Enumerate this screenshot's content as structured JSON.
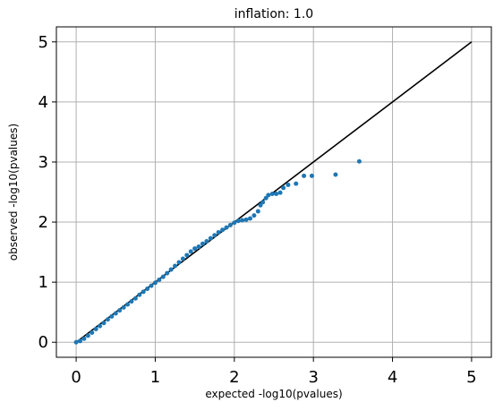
{
  "chart_data": {
    "type": "scatter",
    "title": "inflation: 1.0",
    "xlabel": "expected -log10(pvalues)",
    "ylabel": "observed -log10(pvalues)",
    "xlim": [
      -0.25,
      5.25
    ],
    "ylim": [
      -0.25,
      5.25
    ],
    "xticks": [
      "0",
      "1",
      "2",
      "3",
      "4",
      "5"
    ],
    "yticks": [
      "0",
      "1",
      "2",
      "3",
      "4",
      "5"
    ],
    "grid": true,
    "colors": {
      "points": "#1f77b4",
      "reference_line": "#000000",
      "grid": "#b0b0b0"
    },
    "reference_line": {
      "x": [
        0,
        5
      ],
      "y": [
        0,
        5
      ]
    },
    "series": [
      {
        "x": [
          0.0,
          0.05,
          0.1,
          0.15,
          0.2,
          0.25,
          0.3,
          0.35,
          0.4,
          0.45,
          0.5,
          0.55,
          0.6,
          0.65,
          0.7,
          0.75,
          0.8,
          0.85,
          0.9,
          0.95,
          1.0,
          1.05,
          1.1,
          1.15,
          1.2,
          1.25,
          1.3,
          1.35,
          1.4,
          1.45,
          1.5,
          1.55,
          1.6,
          1.65,
          1.7,
          1.75,
          1.8,
          1.85,
          1.9,
          1.95,
          2.0,
          2.05,
          2.1,
          2.15,
          2.2,
          2.25,
          2.3,
          2.33,
          2.36,
          2.4,
          2.43,
          2.48,
          2.53,
          2.58,
          2.62,
          2.68,
          2.78,
          2.88,
          2.98,
          3.28,
          3.58
        ],
        "y": [
          0.0,
          0.02,
          0.06,
          0.11,
          0.16,
          0.22,
          0.27,
          0.32,
          0.38,
          0.43,
          0.48,
          0.53,
          0.58,
          0.63,
          0.68,
          0.73,
          0.79,
          0.84,
          0.89,
          0.94,
          0.99,
          1.04,
          1.09,
          1.15,
          1.21,
          1.27,
          1.33,
          1.39,
          1.45,
          1.51,
          1.56,
          1.59,
          1.64,
          1.68,
          1.73,
          1.78,
          1.83,
          1.87,
          1.91,
          1.95,
          1.99,
          2.02,
          2.03,
          2.04,
          2.06,
          2.11,
          2.18,
          2.28,
          2.33,
          2.4,
          2.45,
          2.47,
          2.47,
          2.49,
          2.57,
          2.62,
          2.64,
          2.77,
          2.77,
          2.79,
          3.01
        ]
      }
    ]
  }
}
